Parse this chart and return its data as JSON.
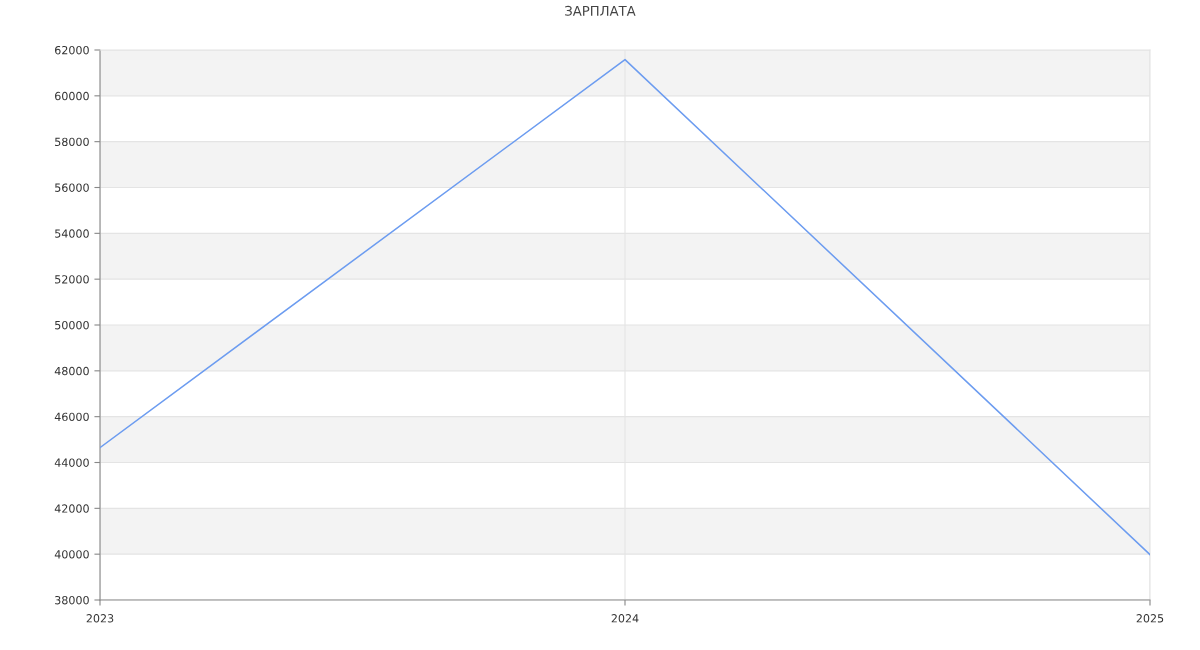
{
  "chart_data": {
    "type": "line",
    "title": "ЗАРПЛАТА",
    "x": [
      2023,
      2024,
      2025
    ],
    "series": [
      {
        "color": "#6c9cf0",
        "values": [
          44650,
          61580,
          39980
        ]
      }
    ],
    "xlim": [
      2023,
      2025
    ],
    "xticks": [
      2023,
      2024,
      2025
    ],
    "ylim": [
      38000,
      62000
    ],
    "yticks": [
      38000,
      40000,
      42000,
      44000,
      46000,
      48000,
      50000,
      52000,
      54000,
      56000,
      58000,
      60000,
      62000
    ],
    "bands": [
      {
        "axis": "y",
        "from": 40000,
        "to": 42000,
        "color": "#f3f3f3"
      },
      {
        "axis": "y",
        "from": 44000,
        "to": 46000,
        "color": "#f3f3f3"
      },
      {
        "axis": "y",
        "from": 48000,
        "to": 50000,
        "color": "#f3f3f3"
      },
      {
        "axis": "y",
        "from": 52000,
        "to": 54000,
        "color": "#f3f3f3"
      },
      {
        "axis": "y",
        "from": 56000,
        "to": 58000,
        "color": "#f3f3f3"
      },
      {
        "axis": "y",
        "from": 60000,
        "to": 62000,
        "color": "#f3f3f3"
      }
    ],
    "grid": true,
    "marker": "none",
    "line_style": "solid"
  }
}
